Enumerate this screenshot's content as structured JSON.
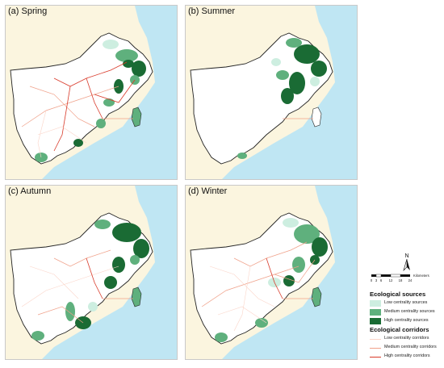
{
  "panels": [
    {
      "id": "a",
      "label": "(a) Spring"
    },
    {
      "id": "b",
      "label": "(b) Summer"
    },
    {
      "id": "c",
      "label": "(c) Autumn"
    },
    {
      "id": "d",
      "label": "(d) Winter"
    }
  ],
  "north_arrow": {
    "label": "N"
  },
  "scale": {
    "ticks": [
      "0",
      "3",
      "6",
      "12",
      "18",
      "24"
    ],
    "unit": "Kilometers"
  },
  "legend": {
    "sources_title": "Ecological sources",
    "sources": [
      {
        "label": "Low centrality sources",
        "color": "#cdeee0"
      },
      {
        "label": "Medium centrality sources",
        "color": "#5fb07d"
      },
      {
        "label": "High centrality sources",
        "color": "#1a6b34"
      }
    ],
    "corridors_title": "Ecological corridors",
    "corridors": [
      {
        "label": "Low centrality corridors",
        "color": "#fbd5c9"
      },
      {
        "label": "Medium centrality corridors",
        "color": "#f0a089"
      },
      {
        "label": "High centrality corridors",
        "color": "#d93a2a"
      }
    ]
  },
  "colors": {
    "sea": "#bfe6f3",
    "land_outside": "#fbf5df",
    "study_area": "#ffffff",
    "boundary": "#222222"
  }
}
